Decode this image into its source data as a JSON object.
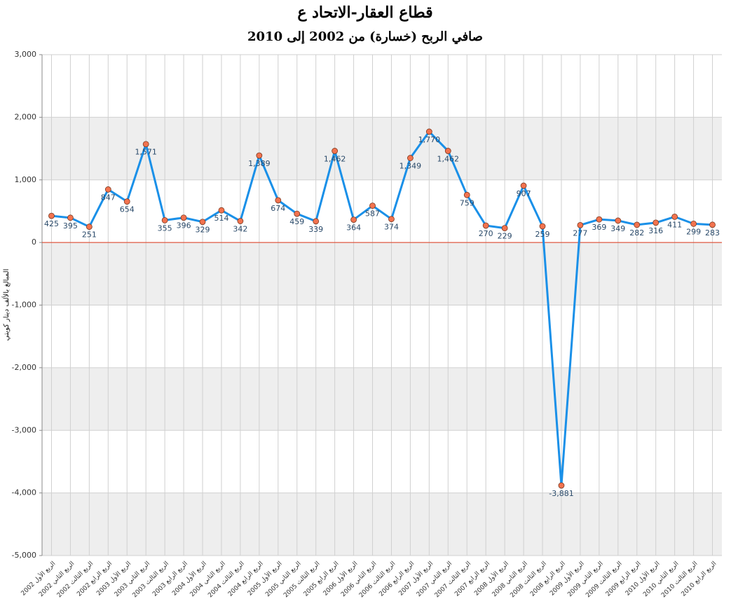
{
  "chart_data": {
    "type": "line",
    "title": "قطاع العقار-الاتحاد ع",
    "subtitle": "صافي الربح (خسارة) من 2002 إلى 2010",
    "y_label": "المبالغ بالألف دينار كويتي",
    "categories": [
      "الربع الأول 2002",
      "الربع الثاني 2002",
      "الربع الثالث 2002",
      "الربع الرابع 2002",
      "الربع الأول 2003",
      "الربع الثاني 2003",
      "الربع الثالث 2003",
      "الربع الرابع 2003",
      "الربع الأول 2004",
      "الربع الثاني 2004",
      "الربع الثالث 2004",
      "الربع الرابع 2004",
      "الربع الأول 2005",
      "الربع الثاني 2005",
      "الربع الثالث 2005",
      "الربع الرابع 2005",
      "الربع الأول 2006",
      "الربع الثاني 2006",
      "الربع الثالث 2006",
      "الربع الرابع 2006",
      "الربع الأول 2007",
      "الربع الثاني 2007",
      "الربع الثالث 2007",
      "الربع الرابع 2007",
      "الربع الأول 2008",
      "الربع الثاني 2008",
      "الربع الثالث 2008",
      "الربع الرابع 2008",
      "الربع الأول 2009",
      "الربع الثاني 2009",
      "الربع الثالث 2009",
      "الربع الرابع 2009",
      "الربع الأول 2010",
      "الربع الثاني 2010",
      "الربع الثالث 2010",
      "الربع الرابع 2010"
    ],
    "values": [
      425,
      395,
      251,
      847,
      654,
      1571,
      355,
      396,
      329,
      514,
      342,
      1389,
      674,
      459,
      339,
      1462,
      364,
      587,
      374,
      1349,
      1770,
      1462,
      759,
      270,
      229,
      907,
      259,
      -3881,
      277,
      369,
      349,
      282,
      316,
      411,
      299,
      283
    ],
    "value_labels": [
      "425",
      "395",
      "251",
      "847",
      "654",
      "1,571",
      "355",
      "396",
      "329",
      "514",
      "342",
      "1,389",
      "674",
      "459",
      "339",
      "1,462",
      "364",
      "587",
      "374",
      "1,349",
      "1,770",
      "1,462",
      "759",
      "270",
      "229",
      "907",
      "259",
      "-3,881",
      "277",
      "369",
      "349",
      "282",
      "316",
      "411",
      "299",
      "283"
    ],
    "color": "#1a90e8",
    "marker_color": "#f2734f",
    "zero_line_color": "#e03a1e",
    "band_color": "#eeeeee",
    "ylim": [
      -5000,
      3000
    ],
    "yticks": [
      {
        "value": -5000,
        "label": "-5,000"
      },
      {
        "value": -4000,
        "label": "-4,000"
      },
      {
        "value": -3000,
        "label": "-3,000"
      },
      {
        "value": -2000,
        "label": "-2,000"
      },
      {
        "value": -1000,
        "label": "-1,000"
      },
      0,
      {
        "value": 1000,
        "label": "1,000"
      },
      {
        "value": 2000,
        "label": "2,000"
      },
      {
        "value": 3000,
        "label": "3,000"
      }
    ],
    "grid": true
  }
}
